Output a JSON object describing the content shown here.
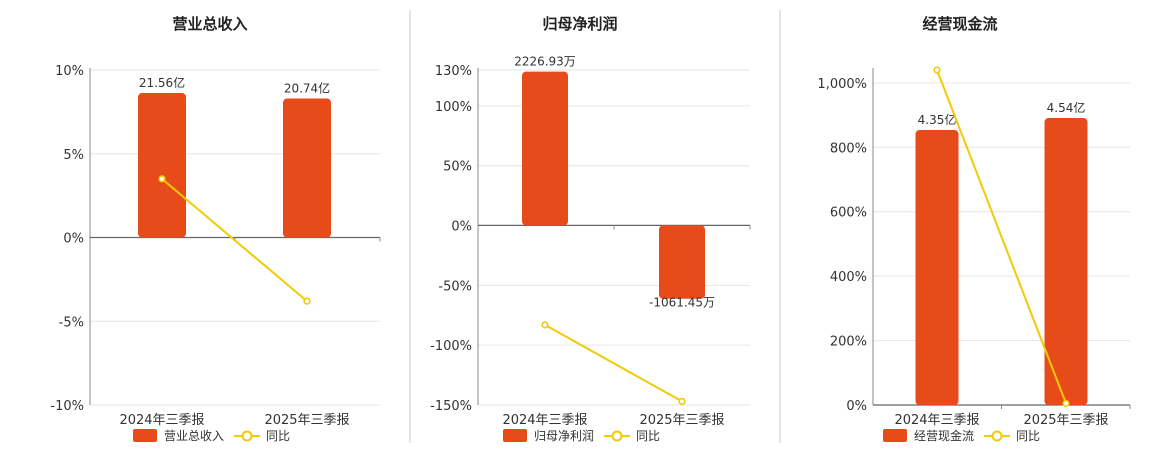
{
  "colors": {
    "bar": "#E84B1A",
    "line": "#F2CB05",
    "grid": "#e6e6e6"
  },
  "legend": {
    "line_label": "同比"
  },
  "chart_data": [
    {
      "type": "bar",
      "title": "营业总收入",
      "categories": [
        "2024年三季报",
        "2025年三季报"
      ],
      "bar_series": {
        "name": "营业总收入",
        "values": [
          21.56,
          20.74
        ],
        "labels": [
          "21.56亿",
          "20.74亿"
        ]
      },
      "line_series": {
        "name": "同比",
        "values": [
          3.5,
          -3.8
        ]
      },
      "y_ticks": [
        "10%",
        "5%",
        "0%",
        "-5%",
        "-10%"
      ],
      "ylim": [
        -10,
        10
      ],
      "bar_ylim": [
        -25,
        25
      ],
      "grid": true,
      "legend_position": "bottom"
    },
    {
      "type": "bar",
      "title": "归母净利润",
      "categories": [
        "2024年三季报",
        "2025年三季报"
      ],
      "bar_series": {
        "name": "归母净利润",
        "values": [
          2226.93,
          -1061.45
        ],
        "labels": [
          "2226.93万",
          "-1061.45万"
        ]
      },
      "line_series": {
        "name": "同比",
        "values": [
          -83,
          -147
        ]
      },
      "y_ticks": [
        "130%",
        "100%",
        "50%",
        "0%",
        "-50%",
        "-100%",
        "-150%"
      ],
      "ylim": [
        -150,
        130
      ],
      "bar_ylim": [
        -2600,
        2250
      ],
      "grid": true,
      "legend_position": "bottom"
    },
    {
      "type": "bar",
      "title": "经营现金流",
      "categories": [
        "2024年三季报",
        "2025年三季报"
      ],
      "bar_series": {
        "name": "经营现金流",
        "values": [
          4.35,
          4.54
        ],
        "labels": [
          "4.35亿",
          "4.54亿"
        ]
      },
      "line_series": {
        "name": "同比",
        "values": [
          1040,
          5
        ]
      },
      "y_ticks": [
        "1,000%",
        "800%",
        "600%",
        "400%",
        "200%",
        "0%"
      ],
      "ylim": [
        0,
        1040
      ],
      "bar_ylim": [
        0,
        5.3
      ],
      "grid": true,
      "legend_position": "bottom"
    }
  ]
}
